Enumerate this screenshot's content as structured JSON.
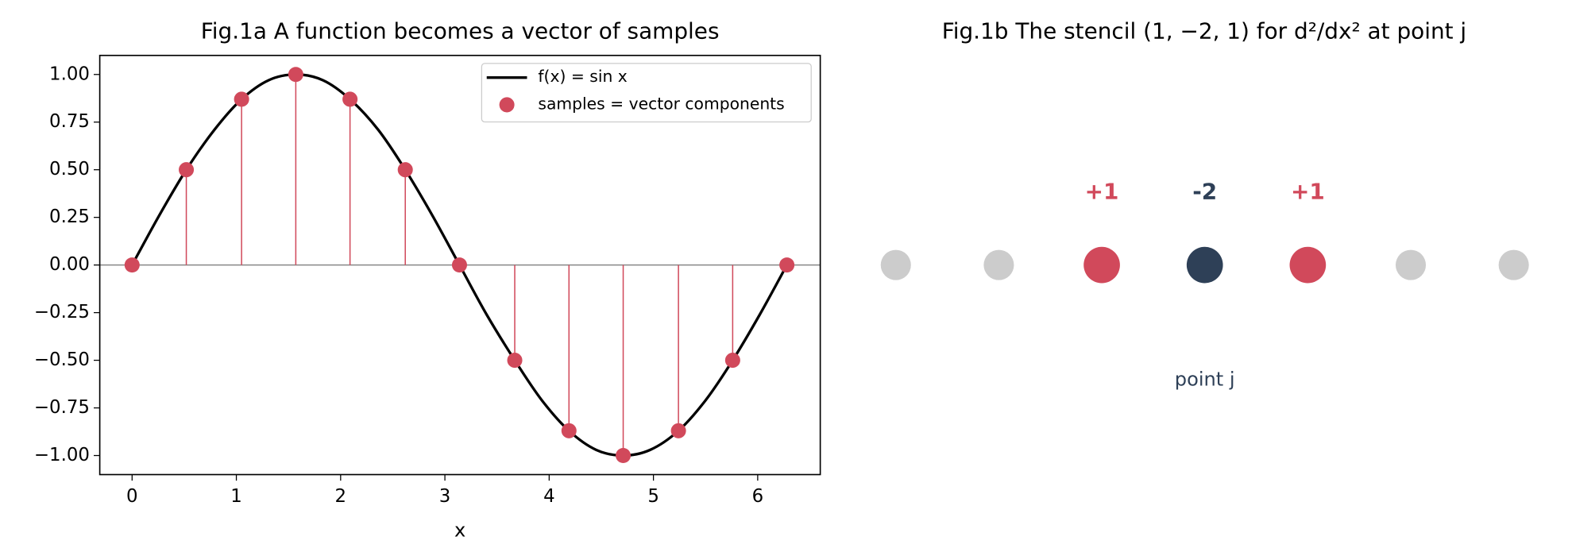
{
  "chart_data": [
    {
      "type": "line",
      "title": "Fig.1a A function becomes a vector of samples",
      "xlabel": "x",
      "xlim": [
        -0.31,
        6.6
      ],
      "ylim": [
        -1.1,
        1.1
      ],
      "xticks": [
        0,
        1,
        2,
        3,
        4,
        5,
        6
      ],
      "yticks": [
        {
          "value": -1,
          "label": "−1.00"
        },
        {
          "value": -0.75,
          "label": "−0.75"
        },
        {
          "value": -0.5,
          "label": "−0.50"
        },
        {
          "value": -0.25,
          "label": "−0.25"
        },
        {
          "value": 0,
          "label": "0.00"
        },
        {
          "value": 0.25,
          "label": "0.25"
        },
        {
          "value": 0.5,
          "label": "0.50"
        },
        {
          "value": 0.75,
          "label": "0.75"
        },
        {
          "value": 1,
          "label": "1.00"
        }
      ],
      "zero_line": true,
      "legend": "upper right",
      "series": [
        {
          "name": "f(x) = sin x",
          "color": "#000000",
          "kind": "line",
          "x": [
            0,
            0.26,
            0.52,
            0.79,
            1.05,
            1.31,
            1.57,
            1.83,
            2.09,
            2.36,
            2.62,
            2.88,
            3.14,
            3.4,
            3.67,
            3.93,
            4.19,
            4.45,
            4.71,
            4.97,
            5.24,
            5.5,
            5.76,
            6.02,
            6.28
          ],
          "values": [
            0,
            0.26,
            0.5,
            0.71,
            0.87,
            0.97,
            1,
            0.97,
            0.87,
            0.71,
            0.5,
            0.26,
            0,
            -0.26,
            -0.5,
            -0.71,
            -0.87,
            -0.97,
            -1,
            -0.97,
            -0.87,
            -0.71,
            -0.5,
            -0.26,
            0
          ]
        },
        {
          "name": "samples = vector components",
          "color": "#d1495b",
          "kind": "stem",
          "x": [
            0,
            0.52,
            1.05,
            1.57,
            2.09,
            2.62,
            3.14,
            3.67,
            4.19,
            4.71,
            5.24,
            5.76,
            6.28
          ],
          "values": [
            0,
            0.5,
            0.87,
            1,
            0.87,
            0.5,
            0,
            -0.5,
            -0.87,
            -1,
            -0.87,
            -0.5,
            0
          ]
        }
      ]
    },
    {
      "type": "stencil",
      "title": "Fig.1b The stencil (1, −2, 1) for d²/dx² at point j",
      "values": [
        null,
        null,
        1,
        -2,
        1,
        null,
        null
      ],
      "value_labels": [
        null,
        null,
        "+1",
        "-2",
        "+1",
        null,
        null
      ],
      "color": "#d1495b",
      "center_color": "#2e4057",
      "inactive_color": "#cccccc",
      "annotation": "point j"
    }
  ]
}
